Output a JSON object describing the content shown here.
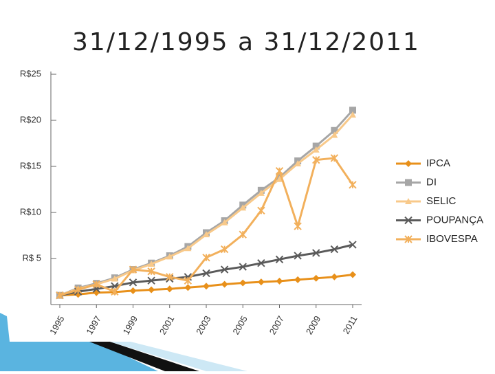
{
  "chart_data": {
    "type": "line",
    "title": "31/12/1995 a 31/12/2011",
    "x": [
      1995,
      1996,
      1997,
      1998,
      1999,
      2000,
      2001,
      2002,
      2003,
      2004,
      2005,
      2006,
      2007,
      2008,
      2009,
      2010,
      2011
    ],
    "xlim": [
      1995,
      2011
    ],
    "xticks": [
      1995,
      1997,
      1999,
      2001,
      2003,
      2005,
      2007,
      2009,
      2011
    ],
    "ylim": [
      0,
      25
    ],
    "yticks": [
      {
        "value": 5,
        "label": "R$ 5"
      },
      {
        "value": 10,
        "label": "R$10"
      },
      {
        "value": 15,
        "label": "R$15"
      },
      {
        "value": 20,
        "label": "R$20"
      },
      {
        "value": 25,
        "label": "R$25"
      }
    ],
    "legend": "right",
    "series": [
      {
        "name": "IPCA",
        "color": "#e8901a",
        "marker": "diamond",
        "values": [
          1,
          1.1,
          1.3,
          1.35,
          1.5,
          1.6,
          1.7,
          1.85,
          2.0,
          2.2,
          2.35,
          2.45,
          2.55,
          2.7,
          2.85,
          3.0,
          3.25
        ]
      },
      {
        "name": "DI",
        "color": "#a6a6a6",
        "marker": "square",
        "values": [
          1,
          1.8,
          2.3,
          2.9,
          3.8,
          4.5,
          5.3,
          6.3,
          7.8,
          9.1,
          10.8,
          12.4,
          13.8,
          15.6,
          17.2,
          18.9,
          21.1
        ]
      },
      {
        "name": "SELIC",
        "color": "#f8c98a",
        "marker": "triangle",
        "values": [
          1,
          1.7,
          2.2,
          2.8,
          3.7,
          4.4,
          5.2,
          6.1,
          7.6,
          8.9,
          10.5,
          12.1,
          13.6,
          15.3,
          16.8,
          18.4,
          20.6
        ]
      },
      {
        "name": "POUPANÇA",
        "color": "#5a5a5a",
        "marker": "x",
        "values": [
          1,
          1.4,
          1.7,
          2.0,
          2.4,
          2.6,
          2.8,
          3.0,
          3.4,
          3.8,
          4.1,
          4.5,
          4.9,
          5.3,
          5.6,
          6.0,
          6.5
        ]
      },
      {
        "name": "IBOVESPA",
        "color": "#f2b05c",
        "marker": "star",
        "values": [
          1,
          1.6,
          2.2,
          1.4,
          3.8,
          3.6,
          3.0,
          2.6,
          5.1,
          6.0,
          7.6,
          10.2,
          14.5,
          8.5,
          15.7,
          15.9,
          13.0
        ]
      }
    ]
  }
}
